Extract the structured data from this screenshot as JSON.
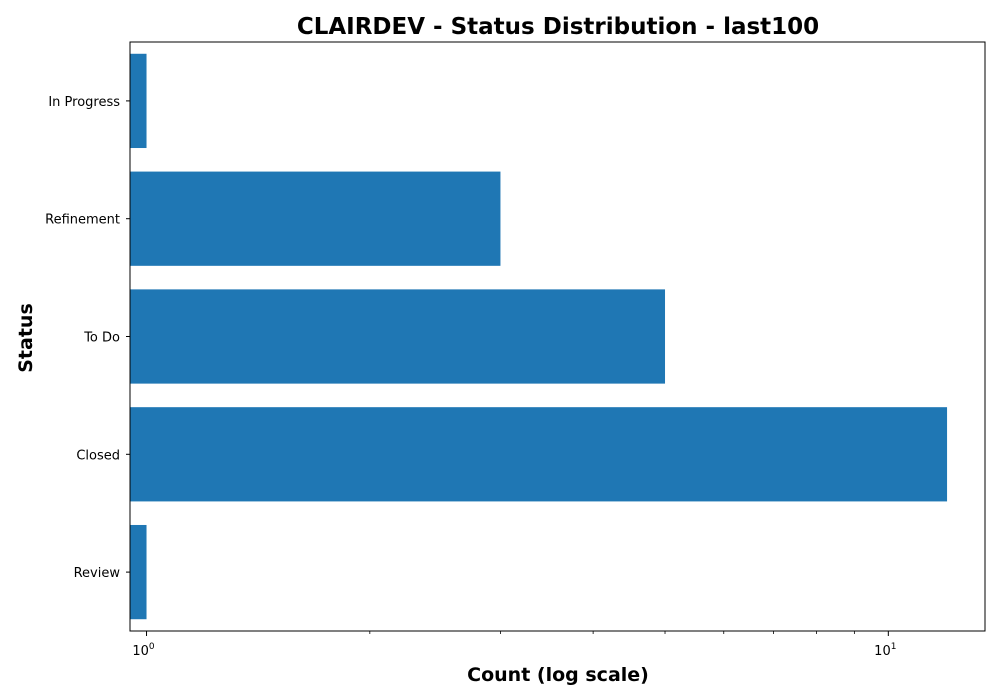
{
  "chart_data": {
    "type": "bar",
    "orientation": "horizontal",
    "title": "CLAIRDEV - Status Distribution - last100",
    "xlabel": "Count (log scale)",
    "ylabel": "Status",
    "x_scale": "log",
    "xlim": [
      0.95,
      13.5
    ],
    "x_ticks": [
      {
        "base": "10",
        "exp": "0",
        "value": 1
      },
      {
        "base": "10",
        "exp": "1",
        "value": 10
      }
    ],
    "grid": false,
    "categories": [
      "In Progress",
      "Refinement",
      "To Do",
      "Closed",
      "Review"
    ],
    "values": [
      1,
      3,
      5,
      12,
      1
    ],
    "bar_color": "#1f77b4"
  }
}
